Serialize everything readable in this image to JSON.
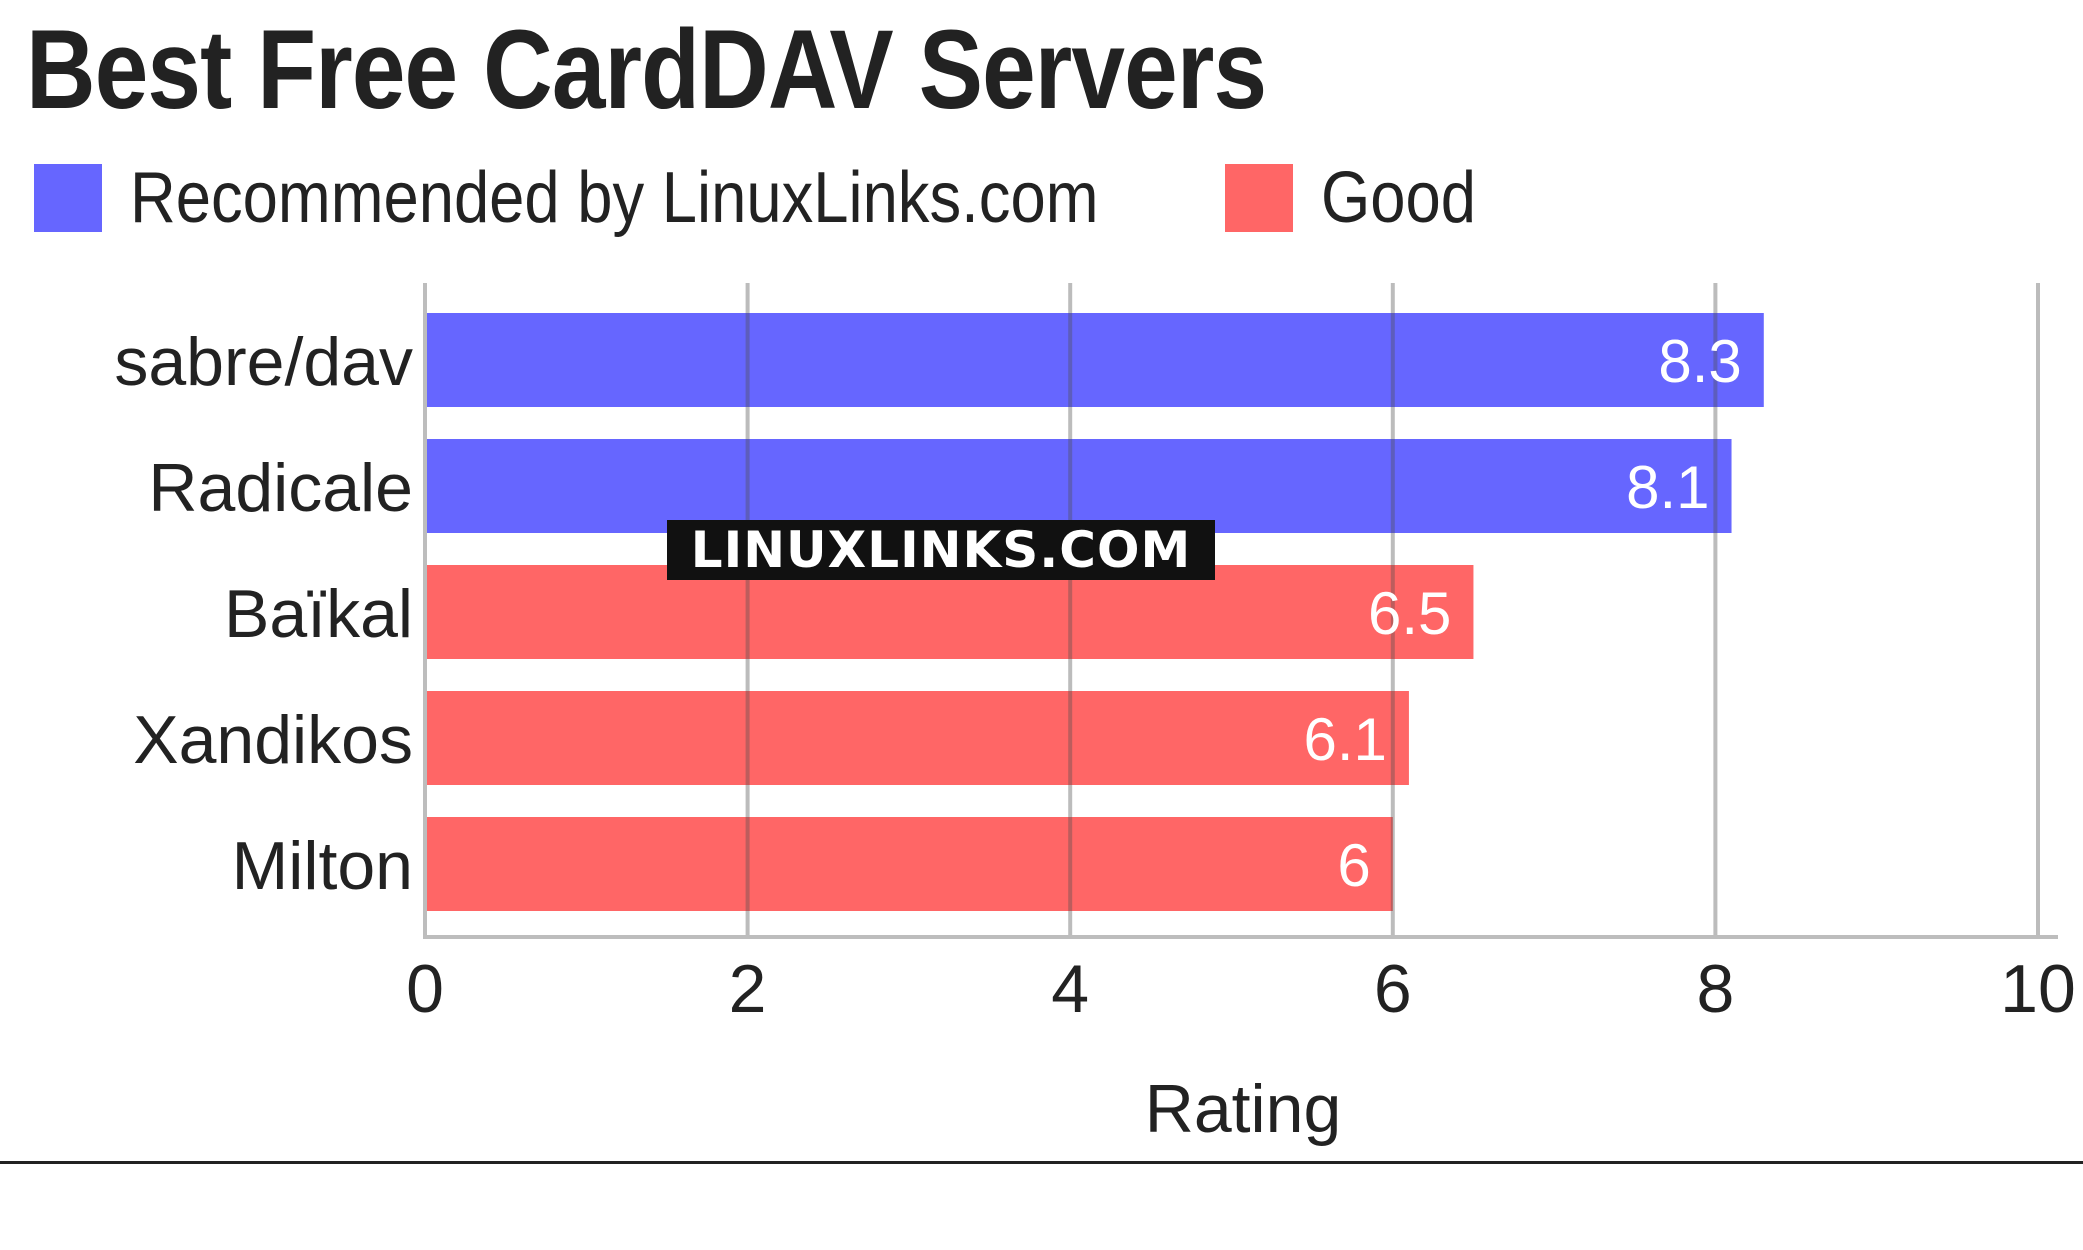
{
  "chart_data": {
    "type": "bar",
    "orientation": "horizontal",
    "title": "Best Free CardDAV Servers",
    "xlabel": "Rating",
    "ylabel": "",
    "xlim": [
      0,
      10
    ],
    "x_ticks": [
      0,
      2,
      4,
      6,
      8,
      10
    ],
    "grid": true,
    "legend_position": "top-left",
    "categories": [
      "sabre/dav",
      "Radicale",
      "Baïkal",
      "Xandikos",
      "Milton"
    ],
    "values": [
      8.3,
      8.1,
      6.5,
      6.1,
      6
    ],
    "bar_groups": [
      "Recommended by LinuxLinks.com",
      "Recommended by LinuxLinks.com",
      "Good",
      "Good",
      "Good"
    ],
    "legend": [
      {
        "name": "Recommended by LinuxLinks.com",
        "color": "#6666ff"
      },
      {
        "name": "Good",
        "color": "#ff6666"
      }
    ],
    "data_labels": [
      "8.3",
      "8.1",
      "6.5",
      "6.1",
      "6"
    ]
  },
  "watermark": "LINUXLINKS.COM"
}
